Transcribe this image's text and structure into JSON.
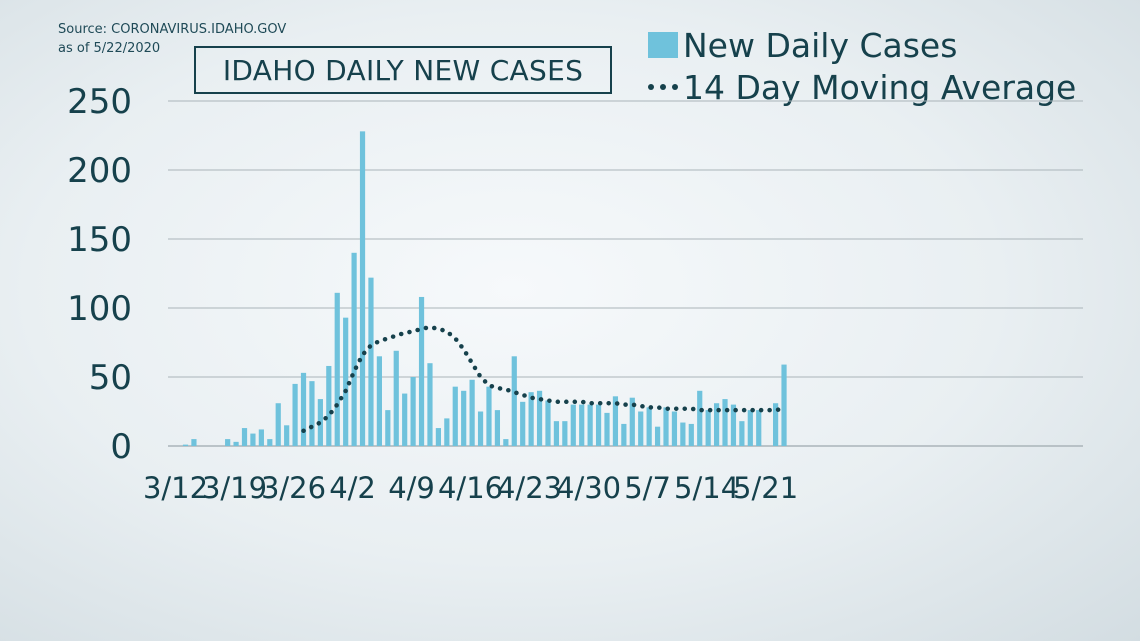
{
  "source_line1": "Source: CORONAVIRUS.IDAHO.GOV",
  "source_line2": "as of 5/22/2020",
  "colors": {
    "bar": "#6fc2dc",
    "average": "#16414c",
    "grid": "#aab4b9",
    "text": "#16414c"
  },
  "chart_data": {
    "type": "bar",
    "title": "IDAHO DAILY NEW CASES",
    "legend_position": "top-right",
    "grid": true,
    "ylim": [
      0,
      250
    ],
    "yticks": [
      0,
      50,
      100,
      150,
      200,
      250
    ],
    "x_start": "3/12",
    "x_ticks": [
      "3/12",
      "3/19",
      "3/26",
      "4/2",
      "4/9",
      "4/16",
      "4/23",
      "4/30",
      "5/7",
      "5/14",
      "5/21"
    ],
    "series": [
      {
        "name": "New Daily Cases",
        "kind": "bar",
        "values": [
          1,
          5,
          0,
          0,
          0,
          5,
          3,
          13,
          9,
          12,
          5,
          31,
          15,
          45,
          53,
          47,
          34,
          58,
          111,
          93,
          140,
          228,
          122,
          65,
          26,
          69,
          38,
          50,
          108,
          60,
          13,
          20,
          43,
          40,
          48,
          25,
          43,
          26,
          5,
          65,
          32,
          39,
          40,
          33,
          18,
          18,
          30,
          30,
          30,
          30,
          24,
          36,
          16,
          35,
          25,
          28,
          14,
          28,
          25,
          17,
          16,
          40,
          26,
          31,
          34,
          30,
          18,
          26,
          26,
          0,
          31,
          59
        ]
      },
      {
        "name": "14 Day Moving Average",
        "kind": "dotted-line",
        "start_index": 14,
        "values": [
          11,
          14,
          17,
          22,
          30,
          40,
          54,
          66,
          73,
          76,
          78,
          80,
          82,
          83,
          85,
          86,
          85,
          83,
          78,
          70,
          60,
          50,
          44,
          42,
          41,
          39,
          37,
          35,
          34,
          33,
          32,
          32,
          32,
          32,
          31,
          31,
          31,
          31,
          30,
          30,
          29,
          28,
          28,
          27,
          27,
          27,
          27,
          26,
          26,
          26,
          26,
          26,
          26,
          26,
          26,
          26,
          26,
          27
        ]
      }
    ]
  }
}
